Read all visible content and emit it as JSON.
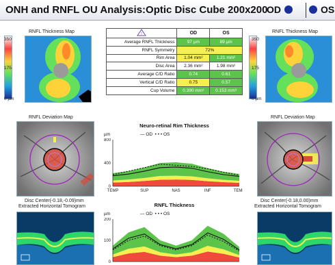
{
  "header": {
    "title": "ONH and RNFL OU Analysis:Optic Disc Cube 200x200",
    "od_label": "OD",
    "os_label": "OS"
  },
  "left": {
    "thickness_map_label": "RNFL Thickness Map",
    "scale_top": "350",
    "scale_mid": "175",
    "scale_bottom": "0 µm",
    "deviation_map_label": "RNFL Deviation Map",
    "disc_center": "Disc Center(-0.18,-0.09)mm",
    "tomogram_label": "Extracted Horizontal Tomogram"
  },
  "right": {
    "thickness_map_label": "RNFL Thickness Map",
    "scale_top": "350",
    "scale_mid": "175",
    "scale_bottom": "0 µm",
    "deviation_map_label": "RNFL Deviation Map",
    "disc_center": "Disc Center(-0.18,0.00)mm",
    "tomogram_label": "Extracted Horizontal Tomogram"
  },
  "table": {
    "col_od": "OD",
    "col_os": "OS",
    "rows": [
      {
        "label": "Average RNFL Thickness",
        "od": "97 µm",
        "os": "89 µm",
        "od_color": "green",
        "os_color": "green"
      },
      {
        "label": "RNFL Symmetry",
        "merged": "72%",
        "color": "yellow"
      },
      {
        "label": "Rim Area",
        "od": "1.04 mm²",
        "os": "1.21 mm²",
        "od_color": "yellow",
        "os_color": "green"
      },
      {
        "label": "Disc Area",
        "od": "2.36 mm²",
        "os": "1.98 mm²",
        "od_color": "white",
        "os_color": "white"
      },
      {
        "label": "Average C/D Ratio",
        "od": "0.74",
        "os": "0.61",
        "od_color": "green",
        "os_color": "green"
      },
      {
        "label": "Vertical C/D Ratio",
        "od": "0.75",
        "os": "0.57",
        "od_color": "yellow",
        "os_color": "green"
      },
      {
        "label": "Cup Volume",
        "od": "0.390 mm³",
        "os": "0.153 mm³",
        "od_color": "green",
        "os_color": "green"
      }
    ]
  },
  "colors": {
    "normal_green": "#5cc44a",
    "borderline_yellow": "#f5ef50",
    "abnormal_red": "#f04a3c",
    "od_blue": "#1a2f9a"
  },
  "rim_chart": {
    "title": "Neuro-retinal Rim Thickness",
    "unit": "µm",
    "legend_od": "OD",
    "legend_os": "OS",
    "y_ticks": [
      "800",
      "400",
      "0"
    ],
    "x_ticks": [
      "TEMP",
      "SUP",
      "NAS",
      "INF",
      "TEMP"
    ]
  },
  "rnfl_chart": {
    "title": "RNFL Thickness",
    "unit": "µm",
    "legend_od": "OD",
    "legend_os": "OS",
    "y_ticks": [
      "200",
      "100",
      "0"
    ]
  },
  "chart_data": [
    {
      "type": "line",
      "title": "Neuro-retinal Rim Thickness",
      "ylabel": "µm",
      "ylim": [
        0,
        800
      ],
      "x": [
        0,
        8,
        16,
        24,
        32,
        40,
        48,
        56,
        64
      ],
      "x_ticks": [
        "TEMP",
        "SUP",
        "NAS",
        "INF",
        "TEMP"
      ],
      "series": [
        {
          "name": "OD",
          "values": [
            180,
            210,
            260,
            320,
            330,
            310,
            250,
            200,
            170
          ]
        },
        {
          "name": "OS",
          "values": [
            200,
            260,
            320,
            380,
            360,
            340,
            300,
            240,
            190
          ]
        }
      ]
    },
    {
      "type": "line",
      "title": "RNFL Thickness",
      "ylabel": "µm",
      "ylim": [
        0,
        200
      ],
      "x": [
        0,
        8,
        16,
        24,
        32,
        40,
        48,
        56,
        64
      ],
      "series": [
        {
          "name": "OD",
          "values": [
            60,
            110,
            130,
            80,
            60,
            80,
            135,
            105,
            55
          ]
        },
        {
          "name": "OS",
          "values": [
            55,
            100,
            120,
            75,
            55,
            75,
            125,
            95,
            50
          ]
        }
      ]
    }
  ]
}
